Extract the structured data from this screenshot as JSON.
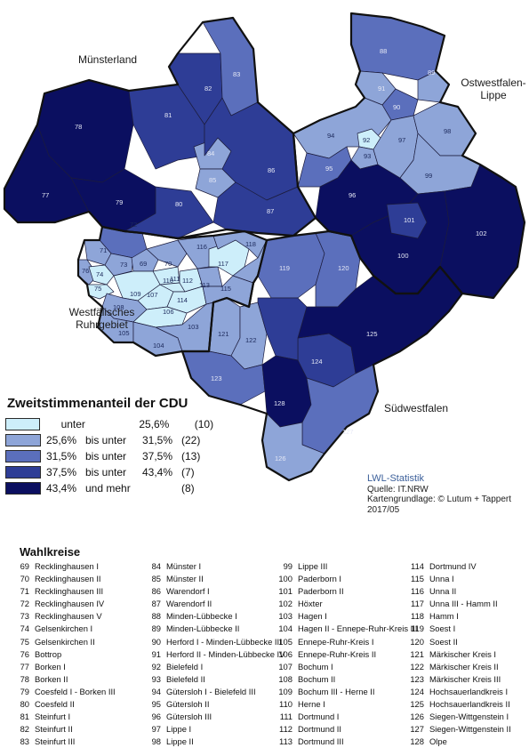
{
  "map": {
    "region_labels": [
      "Münsterland",
      "Ostwestfalen-Lippe",
      "Westfälisches Ruhrgebiet",
      "Südwestfalen"
    ],
    "legend": {
      "title": "Zweitstimmenanteil der CDU",
      "classes": [
        {
          "a": "unter",
          "b": "",
          "c": "25,6%",
          "count": "(10)",
          "color": "#cdeefa"
        },
        {
          "a": "25,6%",
          "b": "bis unter",
          "c": "31,5%",
          "count": "(22)",
          "color": "#8ea5d8"
        },
        {
          "a": "31,5%",
          "b": "bis unter",
          "c": "37,5%",
          "count": "(13)",
          "color": "#5b6fbc"
        },
        {
          "a": "37,5%",
          "b": "bis unter",
          "c": "43,4%",
          "count": "(7)",
          "color": "#2e3d96"
        },
        {
          "a": "43,4%",
          "b": "und mehr",
          "c": "",
          "count": "(8)",
          "color": "#0b0f60"
        }
      ]
    },
    "credits": {
      "brand": "LWL-Statistik",
      "source": "Quelle: IT.NRW",
      "basemap": "Kartengrundlage: © Lutum + Tappert",
      "date": "2017/05"
    },
    "district_numbers": [
      "69",
      "70",
      "71",
      "72",
      "73",
      "74",
      "75",
      "76",
      "77",
      "78",
      "79",
      "80",
      "81",
      "82",
      "83",
      "84",
      "85",
      "86",
      "87",
      "88",
      "89",
      "90",
      "91",
      "92",
      "93",
      "94",
      "95",
      "96",
      "97",
      "98",
      "99",
      "100",
      "101",
      "102",
      "103",
      "104",
      "105",
      "106",
      "107",
      "108",
      "109",
      "110",
      "111",
      "112",
      "113",
      "114",
      "115",
      "116",
      "117",
      "118",
      "119",
      "120",
      "121",
      "122",
      "123",
      "124",
      "125",
      "126",
      "127",
      "128"
    ]
  },
  "wahlkreise": {
    "title": "Wahlkreise",
    "columns": [
      [
        [
          "69",
          "Recklinghausen I"
        ],
        [
          "70",
          "Recklinghausen II"
        ],
        [
          "71",
          "Recklinghausen III"
        ],
        [
          "72",
          "Recklinghausen IV"
        ],
        [
          "73",
          "Recklinghausen V"
        ],
        [
          "74",
          "Gelsenkirchen I"
        ],
        [
          "75",
          "Gelsenkirchen II"
        ],
        [
          "76",
          "Bottrop"
        ],
        [
          "77",
          "Borken I"
        ],
        [
          "78",
          "Borken II"
        ],
        [
          "79",
          "Coesfeld I - Borken III"
        ],
        [
          "80",
          "Coesfeld II"
        ],
        [
          "81",
          "Steinfurt I"
        ],
        [
          "82",
          "Steinfurt II"
        ],
        [
          "83",
          "Steinfurt III"
        ]
      ],
      [
        [
          "84",
          "Münster I"
        ],
        [
          "85",
          "Münster II"
        ],
        [
          "86",
          "Warendorf  I"
        ],
        [
          "87",
          "Warendorf  II"
        ],
        [
          "88",
          "Minden-Lübbecke I"
        ],
        [
          "89",
          "Minden-Lübbecke II"
        ],
        [
          "90",
          "Herford I - Minden-Lübbecke III"
        ],
        [
          "91",
          "Herford II - Minden-Lübbecke IV"
        ],
        [
          "92",
          "Bielefeld I"
        ],
        [
          "93",
          "Bielefeld II"
        ],
        [
          "94",
          "Gütersloh I - Bielefeld III"
        ],
        [
          "95",
          "Gütersloh II"
        ],
        [
          "96",
          "Gütersloh III"
        ],
        [
          "97",
          "Lippe I"
        ],
        [
          "98",
          "Lippe II"
        ]
      ],
      [
        [
          "99",
          "Lippe III"
        ],
        [
          "100",
          "Paderborn I"
        ],
        [
          "101",
          "Paderborn II"
        ],
        [
          "102",
          "Höxter"
        ],
        [
          "103",
          "Hagen I"
        ],
        [
          "104",
          "Hagen II - Ennepe-Ruhr-Kreis III"
        ],
        [
          "105",
          "Ennepe-Ruhr-Kreis I"
        ],
        [
          "106",
          "Ennepe-Ruhr-Kreis II"
        ],
        [
          "107",
          "Bochum I"
        ],
        [
          "108",
          "Bochum II"
        ],
        [
          "109",
          "Bochum III - Herne II"
        ],
        [
          "110",
          "Herne I"
        ],
        [
          "111",
          "Dortmund I"
        ],
        [
          "112",
          "Dortmund II"
        ],
        [
          "113",
          "Dortmund III"
        ]
      ],
      [
        [
          "114",
          "Dortmund IV"
        ],
        [
          "115",
          "Unna I"
        ],
        [
          "116",
          "Unna II"
        ],
        [
          "117",
          "Unna III - Hamm II"
        ],
        [
          "118",
          "Hamm I"
        ],
        [
          "119",
          "Soest I"
        ],
        [
          "120",
          "Soest II"
        ],
        [
          "121",
          "Märkischer Kreis I"
        ],
        [
          "122",
          "Märkischer Kreis II"
        ],
        [
          "123",
          "Märkischer Kreis III"
        ],
        [
          "124",
          "Hochsauerlandkreis I"
        ],
        [
          "125",
          "Hochsauerlandkreis II"
        ],
        [
          "126",
          "Siegen-Wittgenstein I"
        ],
        [
          "127",
          "Siegen-Wittgenstein II"
        ],
        [
          "128",
          "Olpe"
        ]
      ]
    ]
  }
}
